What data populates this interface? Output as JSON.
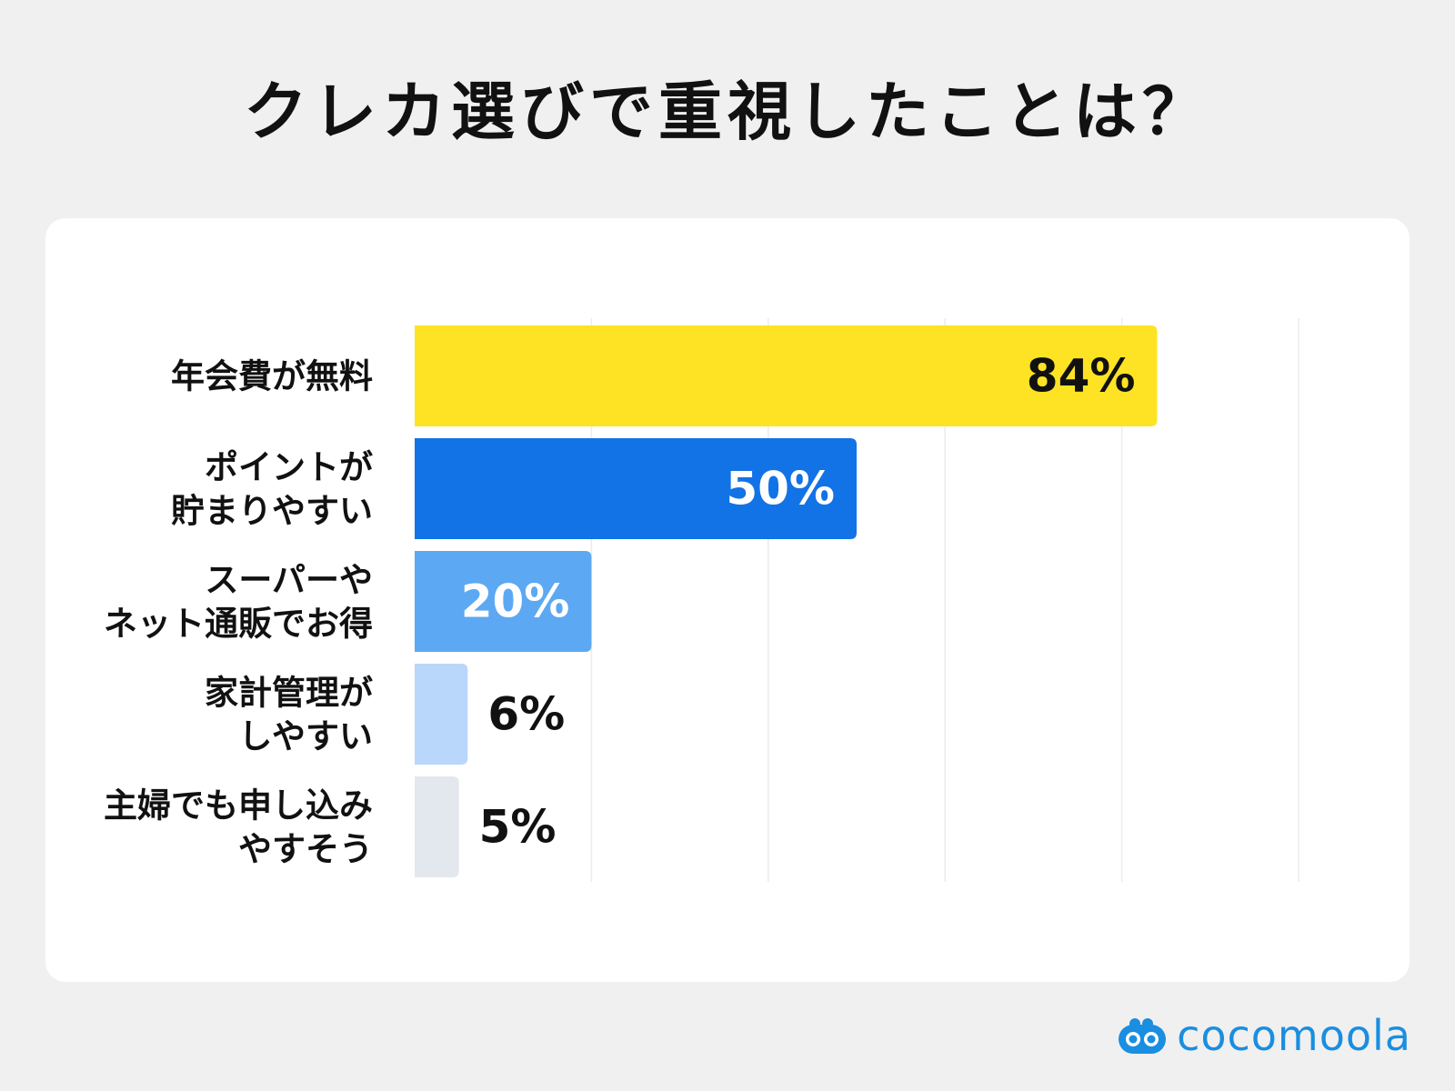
{
  "chart_data": {
    "type": "bar",
    "orientation": "horizontal",
    "title": "クレカ選びで重視したことは？",
    "categories": [
      [
        "年会費が無料"
      ],
      [
        "ポイントが",
        "貯まりやすい"
      ],
      [
        "スーパーや",
        "ネット通販でお得"
      ],
      [
        "家計管理が",
        "しやすい"
      ],
      [
        "主婦でも申し込み",
        "やすそう"
      ]
    ],
    "values": [
      84,
      50,
      20,
      6,
      5
    ],
    "value_labels": [
      "84%",
      "50%",
      "20%",
      "6%",
      "5%"
    ],
    "colors": [
      "#fde323",
      "#1273e6",
      "#5ca8f3",
      "#b9d7fa",
      "#e3e7ee"
    ],
    "label_colors": [
      "#111111",
      "#ffffff",
      "#ffffff",
      "#111111",
      "#111111"
    ],
    "xlim": [
      0,
      100
    ],
    "grid": true,
    "xlabel": "",
    "ylabel": ""
  },
  "brand": {
    "name": "cocomoola",
    "color": "#1a8ee0"
  }
}
